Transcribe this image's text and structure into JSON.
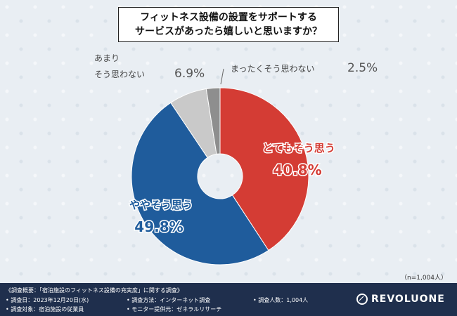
{
  "title": {
    "line1": "フィットネス設備の設置をサポートする",
    "line2": "サービスがあったら嬉しいと思いますか？"
  },
  "chart_data": {
    "type": "pie",
    "donut": true,
    "slices": [
      {
        "label": "とてもそう思う",
        "value": 40.8,
        "color": "#d43c34"
      },
      {
        "label": "ややそう思う",
        "value": 49.8,
        "color": "#1f5c9c"
      },
      {
        "label": "あまりそう思わない",
        "value": 6.9,
        "color": "#c9c9c9"
      },
      {
        "label": "まったくそう思わない",
        "value": 2.5,
        "color": "#8e8e8e"
      }
    ],
    "unit": "%"
  },
  "n_note": "（n=1,004人）",
  "footer": {
    "overview": "《調査概要：「宿泊施設のフィットネス設備の充実度」に関する調査》",
    "date": "• 調査日：2023年12月20日(水)",
    "method": "• 調査方法：インターネット調査",
    "count": "• 調査人数：1,004人",
    "target": "• 調査対象：宿泊施設の従業員",
    "provider": "• モニター提供元：ゼネラルリサーチ",
    "logo": "REVOLUONE"
  }
}
